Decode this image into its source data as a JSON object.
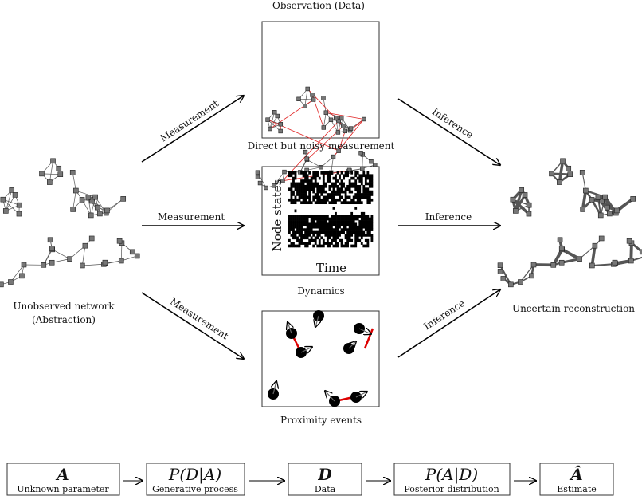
{
  "top_label": "Observation (Data)",
  "panels": {
    "noisy": {
      "caption": "Direct but noisy measurement"
    },
    "dynamics": {
      "caption": "Dynamics",
      "ylabel": "Node states",
      "xlabel": "Time"
    },
    "proximity": {
      "caption": "Proximity events"
    }
  },
  "left_network": {
    "caption_line1": "Unobserved network",
    "caption_line2": "(Abstraction)"
  },
  "right_network": {
    "caption": "Uncertain reconstruction"
  },
  "arrows": {
    "measurement": "Measurement",
    "inference": "Inference"
  },
  "colors": {
    "node": "#777777",
    "edge": "#555555",
    "noise_edge": "#e02020",
    "proximity_edge": "#dd0000"
  },
  "pipeline": [
    {
      "symbol": "A",
      "label": "Unknown parameter"
    },
    {
      "symbol": "P(D|A)",
      "label": "Generative process"
    },
    {
      "symbol": "D",
      "label": "Data"
    },
    {
      "symbol": "P(A|D)",
      "label": "Posterior distribution"
    },
    {
      "symbol": "Â",
      "label": "Estimate"
    }
  ]
}
